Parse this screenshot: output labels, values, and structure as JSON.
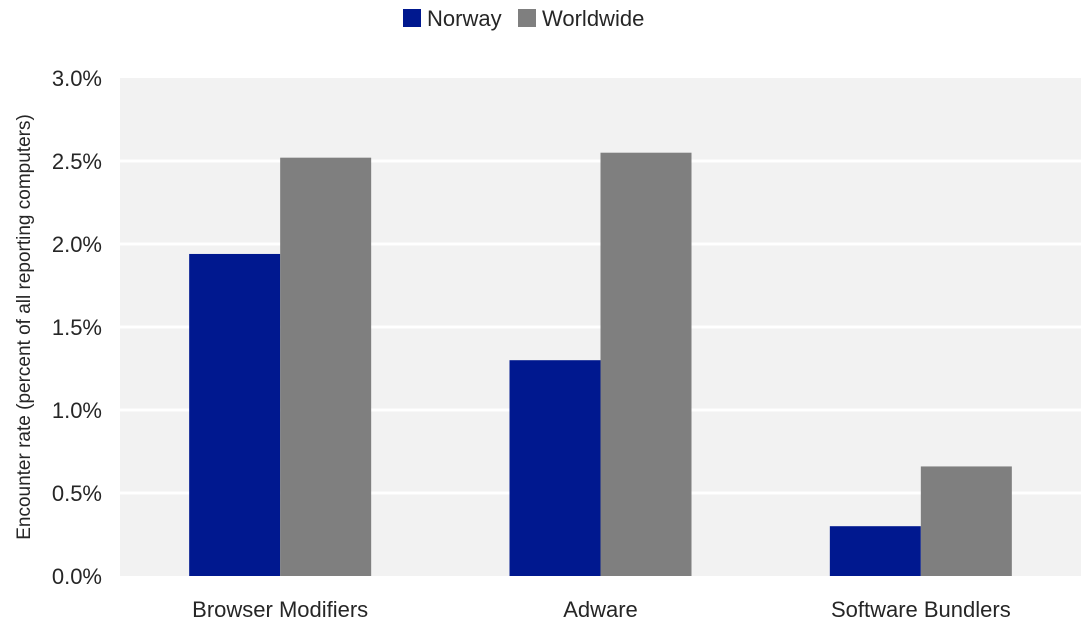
{
  "chart_data": {
    "type": "bar",
    "title": "",
    "xlabel": "",
    "ylabel": "Encounter rate (percent of all reporting computers)",
    "categories": [
      "Browser Modifiers",
      "Adware",
      "Software Bundlers"
    ],
    "series": [
      {
        "name": "Norway",
        "color": "#00188f",
        "values": [
          1.94,
          1.3,
          0.3
        ]
      },
      {
        "name": "Worldwide",
        "color": "#7f7f7f",
        "values": [
          2.52,
          2.55,
          0.66
        ]
      }
    ],
    "ylim": [
      0,
      3.0
    ],
    "yticks": [
      0.0,
      0.5,
      1.0,
      1.5,
      2.0,
      2.5,
      3.0
    ],
    "ytick_labels": [
      "0.0%",
      "0.5%",
      "1.0%",
      "1.5%",
      "2.0%",
      "2.5%",
      "3.0%"
    ],
    "grid": true,
    "legend_position": "top-center",
    "plot_background": "#f2f2f2",
    "gridline_color": "#ffffff"
  }
}
